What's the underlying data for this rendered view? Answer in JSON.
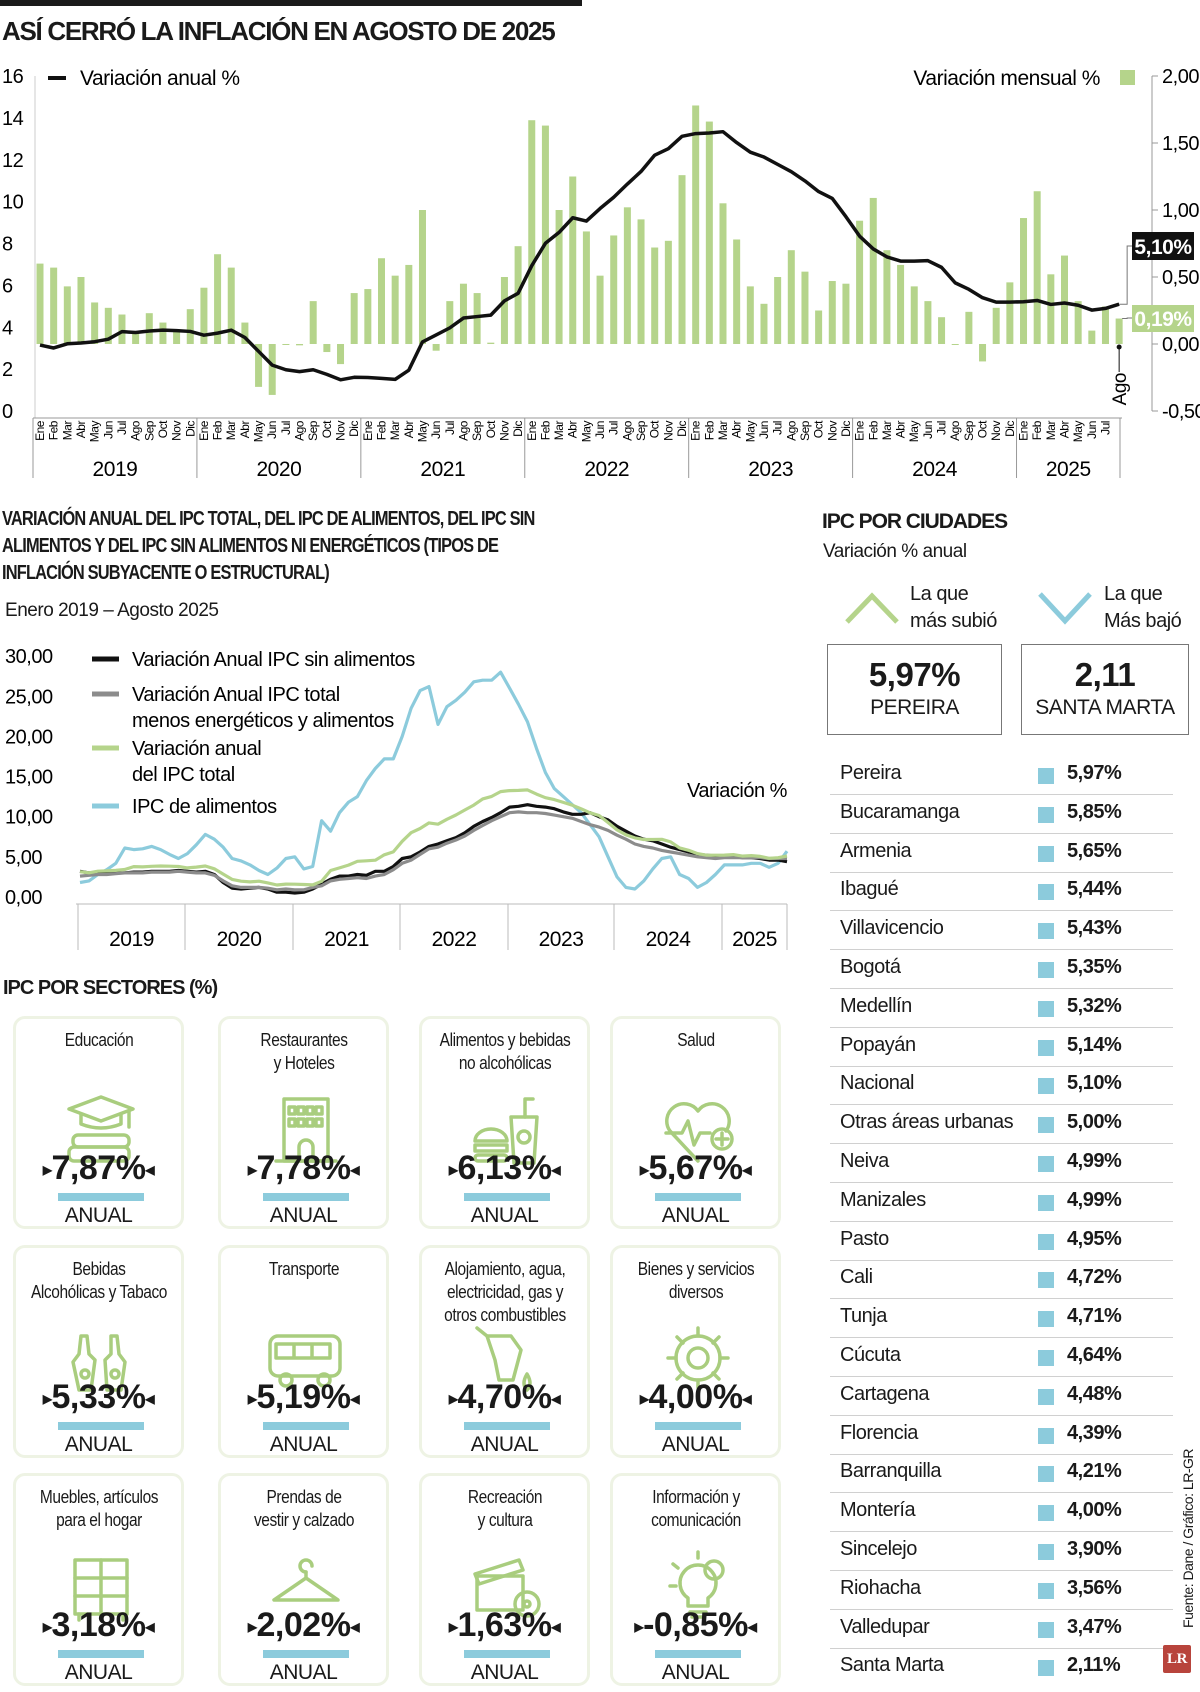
{
  "title": "ASÍ CERRÓ LA INFLACIÓN EN AGOSTO DE 2025",
  "colors": {
    "green": "#b5d48b",
    "blue": "#8ccbdc",
    "black": "#111111",
    "gray": "#8c8c8c",
    "label_black": "#111111",
    "label_green": "#b5d48b"
  },
  "chart_data": [
    {
      "type": "bar",
      "legend_line": "Variación anual %",
      "legend_bar": "Variación mensual %",
      "left_axis": {
        "range": [
          0,
          16
        ],
        "ticks": [
          "0",
          "2",
          "4",
          "6",
          "8",
          "10",
          "12",
          "14",
          "16"
        ]
      },
      "right_axis": {
        "range": [
          -0.5,
          2.0
        ],
        "ticks": [
          "-0,50",
          "0,00",
          "0,50",
          "1,00",
          "1,50",
          "2,00"
        ]
      },
      "month_labels": [
        "Ene",
        "Feb",
        "Mar",
        "Abr",
        "May",
        "Jun",
        "Jul",
        "Ago",
        "Sep",
        "Oct",
        "Nov",
        "Dic",
        "Ene",
        "Feb",
        "Mar",
        "Abr",
        "May",
        "Jun",
        "Jul",
        "Ago",
        "Sep",
        "Oct",
        "Nov",
        "Dic",
        "Ene",
        "Feb",
        "Mar",
        "Abr",
        "May",
        "Jun",
        "Jul",
        "Ago",
        "Sep",
        "Oct",
        "Nov",
        "Dic",
        "Ene",
        "Feb",
        "Mar",
        "Abr",
        "May",
        "Jun",
        "Jul",
        "Ago",
        "Sep",
        "Oct",
        "Nov",
        "Dic",
        "Ene",
        "Feb",
        "Mar",
        "Abr",
        "May",
        "Jun",
        "Jul",
        "Ago",
        "Sep",
        "Oct",
        "Nov",
        "Dic",
        "Ene",
        "Feb",
        "Mar",
        "Abr",
        "May",
        "Jun",
        "Jul",
        "Ago",
        "Sep",
        "Oct",
        "Nov",
        "Dic",
        "Ene",
        "Feb",
        "Mar",
        "Abr",
        "May",
        "Jun",
        "Jul"
      ],
      "last_month_label": "Ago",
      "years": [
        "2019",
        "2020",
        "2021",
        "2022",
        "2023",
        "2024",
        "2025"
      ],
      "series": [
        {
          "name": "Variación anual %",
          "type": "line",
          "axis": "left",
          "values": [
            3.15,
            3.01,
            3.21,
            3.25,
            3.31,
            3.43,
            3.79,
            3.75,
            3.82,
            3.86,
            3.84,
            3.8,
            3.62,
            3.72,
            3.86,
            3.51,
            2.85,
            2.19,
            1.97,
            1.88,
            1.97,
            1.75,
            1.49,
            1.61,
            1.6,
            1.56,
            1.51,
            1.95,
            3.3,
            3.63,
            3.97,
            4.44,
            4.51,
            4.58,
            5.26,
            5.62,
            6.94,
            8.01,
            8.53,
            9.23,
            9.07,
            9.67,
            10.21,
            10.84,
            11.44,
            12.22,
            12.53,
            13.12,
            13.25,
            13.28,
            13.34,
            12.82,
            12.36,
            12.13,
            11.78,
            11.43,
            10.99,
            10.48,
            10.15,
            9.28,
            8.35,
            7.74,
            7.36,
            7.16,
            7.16,
            7.18,
            6.86,
            6.12,
            5.81,
            5.41,
            5.2,
            5.2,
            5.22,
            5.28,
            5.09,
            5.16,
            5.05,
            4.82,
            4.9,
            5.1
          ]
        },
        {
          "name": "Variación mensual %",
          "type": "bar",
          "axis": "right",
          "values": [
            0.6,
            0.57,
            0.43,
            0.5,
            0.31,
            0.27,
            0.22,
            0.09,
            0.23,
            0.16,
            0.1,
            0.26,
            0.42,
            0.67,
            0.57,
            0.16,
            -0.32,
            -0.38,
            0.0,
            -0.01,
            0.32,
            -0.06,
            -0.15,
            0.38,
            0.41,
            0.64,
            0.51,
            0.59,
            1.0,
            -0.05,
            0.32,
            0.45,
            0.38,
            0.01,
            0.5,
            0.73,
            1.67,
            1.63,
            1.0,
            1.25,
            0.84,
            0.51,
            0.81,
            1.02,
            0.93,
            0.72,
            0.77,
            1.26,
            1.78,
            1.66,
            1.05,
            0.78,
            0.43,
            0.3,
            0.5,
            0.7,
            0.54,
            0.25,
            0.47,
            0.45,
            0.92,
            1.09,
            0.7,
            0.59,
            0.43,
            0.32,
            0.2,
            0.0,
            0.24,
            -0.13,
            0.27,
            0.46,
            0.94,
            1.14,
            0.52,
            0.66,
            0.32,
            0.1,
            0.28,
            0.19
          ]
        }
      ],
      "callouts": {
        "annual": "5,10%",
        "monthly": "0,19%"
      }
    },
    {
      "type": "line",
      "title": "VARIACIÓN ANUAL DEL IPC TOTAL, DEL IPC DE ALIMENTOS, DEL IPC SIN ALIMENTOS Y DEL IPC SIN ALIMENTOS NI ENERGÉTICOS (TIPOS DE INFLACIÓN SUBYACENTE O ESTRUCTURAL)",
      "subtitle": "Enero 2019 – Agosto 2025",
      "ylim": [
        0,
        30
      ],
      "y_ticks": [
        "0,00",
        "5,00",
        "10,00",
        "15,00",
        "20,00",
        "25,00",
        "30,00"
      ],
      "years": [
        "2019",
        "2020",
        "2021",
        "2022",
        "2023",
        "2024",
        "2025"
      ],
      "annotation": "Variación %",
      "last_month_label": "Ago",
      "series": [
        {
          "name": "Variación Anual IPC sin alimentos",
          "color": "#111111",
          "values": [
            3.2,
            3.0,
            3.0,
            3.0,
            3.0,
            3.0,
            3.1,
            3.1,
            3.2,
            3.2,
            3.2,
            3.3,
            3.2,
            3.1,
            3.2,
            2.8,
            1.8,
            1.1,
            1.0,
            1.1,
            1.2,
            1.0,
            0.6,
            0.6,
            0.5,
            0.6,
            1.0,
            1.6,
            2.2,
            2.6,
            2.6,
            2.8,
            2.7,
            3.2,
            3.2,
            3.8,
            4.8,
            5.0,
            5.6,
            6.3,
            6.6,
            7.0,
            7.4,
            8.0,
            8.8,
            9.4,
            9.9,
            10.5,
            11.2,
            11.3,
            11.5,
            11.3,
            11.2,
            11.0,
            10.6,
            10.3,
            10.3,
            10.5,
            10.0,
            9.6,
            8.8,
            8.2,
            7.6,
            7.2,
            7.0,
            6.6,
            6.2,
            5.9,
            5.6,
            5.3,
            5.2,
            5.1,
            5.1,
            5.0,
            4.9,
            4.9,
            4.8,
            4.6,
            4.6,
            4.4
          ]
        },
        {
          "name": "Variación Anual IPC total menos energéticos y alimentos",
          "color": "#8c8c8c",
          "values": [
            2.6,
            2.7,
            2.8,
            2.8,
            2.9,
            3.0,
            3.0,
            3.0,
            3.1,
            3.1,
            3.1,
            3.2,
            3.1,
            3.0,
            3.0,
            2.7,
            2.0,
            1.4,
            1.2,
            1.2,
            1.2,
            1.1,
            0.9,
            1.0,
            0.9,
            0.9,
            1.2,
            1.4,
            2.0,
            2.2,
            2.3,
            2.4,
            2.3,
            2.6,
            2.8,
            3.4,
            4.2,
            4.6,
            5.3,
            6.0,
            6.2,
            6.7,
            7.1,
            7.6,
            8.3,
            8.9,
            9.5,
            10.0,
            10.5,
            10.6,
            10.5,
            10.5,
            10.4,
            10.2,
            10.0,
            9.8,
            9.4,
            9.0,
            8.7,
            8.3,
            7.7,
            7.2,
            6.6,
            6.3,
            6.1,
            5.8,
            5.6,
            5.4,
            5.2,
            5.0,
            4.9,
            4.8,
            4.9,
            4.9,
            4.9,
            4.9,
            4.9,
            4.8,
            4.8,
            4.8
          ]
        },
        {
          "name": "Variación anual del IPC total",
          "color": "#b5d48b",
          "values": [
            3.15,
            3.01,
            3.21,
            3.25,
            3.31,
            3.43,
            3.79,
            3.75,
            3.82,
            3.86,
            3.84,
            3.8,
            3.62,
            3.72,
            3.86,
            3.51,
            2.85,
            2.19,
            1.97,
            1.88,
            1.97,
            1.75,
            1.49,
            1.61,
            1.6,
            1.56,
            1.51,
            1.95,
            3.3,
            3.63,
            3.97,
            4.44,
            4.51,
            4.58,
            5.26,
            5.62,
            6.94,
            8.01,
            8.53,
            9.23,
            9.07,
            9.67,
            10.21,
            10.84,
            11.44,
            12.22,
            12.53,
            13.12,
            13.25,
            13.28,
            13.34,
            12.82,
            12.36,
            12.13,
            11.78,
            11.43,
            10.99,
            10.48,
            10.15,
            9.28,
            8.35,
            7.74,
            7.36,
            7.16,
            7.16,
            7.18,
            6.86,
            6.12,
            5.81,
            5.41,
            5.2,
            5.2,
            5.22,
            5.28,
            5.09,
            5.16,
            5.05,
            4.82,
            4.9,
            5.1
          ]
        },
        {
          "name": "IPC de alimentos",
          "color": "#8ccbdc",
          "values": [
            1.8,
            2.0,
            2.8,
            3.4,
            4.2,
            6.1,
            5.9,
            6.0,
            6.3,
            5.9,
            5.3,
            4.8,
            5.4,
            6.5,
            7.8,
            7.2,
            6.2,
            4.8,
            4.5,
            4.0,
            3.3,
            2.8,
            3.6,
            4.8,
            5.0,
            3.5,
            3.8,
            9.5,
            8.2,
            10.5,
            11.8,
            12.5,
            14.5,
            16.0,
            17.2,
            17.2,
            20.0,
            23.5,
            25.7,
            26.2,
            21.5,
            23.7,
            24.5,
            25.5,
            26.8,
            27.0,
            27.0,
            28.0,
            26.0,
            24.0,
            21.8,
            18.5,
            15.5,
            13.5,
            12.5,
            11.5,
            10.5,
            9.0,
            7.5,
            5.0,
            2.5,
            1.2,
            1.0,
            2.0,
            3.5,
            4.8,
            5.0,
            2.8,
            2.3,
            1.2,
            1.8,
            2.8,
            4.0,
            4.0,
            4.0,
            4.2,
            4.2,
            3.7,
            4.2,
            5.7
          ]
        }
      ]
    }
  ],
  "cities": {
    "title": "IPC POR CIUDADES",
    "subtitle": "Variación % anual",
    "up": {
      "label": "La que\nmás subió",
      "value": "5,97%",
      "city": "PEREIRA"
    },
    "down": {
      "label": "La que\nMás bajó",
      "value": "2,11",
      "city": "SANTA MARTA"
    },
    "items": [
      {
        "name": "Pereira",
        "value": "5,97%"
      },
      {
        "name": "Bucaramanga",
        "value": "5,85%"
      },
      {
        "name": "Armenia",
        "value": "5,65%"
      },
      {
        "name": "Ibagué",
        "value": "5,44%"
      },
      {
        "name": "Villavicencio",
        "value": "5,43%"
      },
      {
        "name": "Bogotá",
        "value": "5,35%"
      },
      {
        "name": "Medellín",
        "value": "5,32%"
      },
      {
        "name": "Popayán",
        "value": "5,14%"
      },
      {
        "name": "Nacional",
        "value": "5,10%"
      },
      {
        "name": "Otras áreas urbanas",
        "value": "5,00%"
      },
      {
        "name": "Neiva",
        "value": "4,99%"
      },
      {
        "name": "Manizales",
        "value": "4,99%"
      },
      {
        "name": "Pasto",
        "value": "4,95%"
      },
      {
        "name": "Cali",
        "value": "4,72%"
      },
      {
        "name": "Tunja",
        "value": "4,71%"
      },
      {
        "name": "Cúcuta",
        "value": "4,64%"
      },
      {
        "name": "Cartagena",
        "value": "4,48%"
      },
      {
        "name": "Florencia",
        "value": "4,39%"
      },
      {
        "name": "Barranquilla",
        "value": "4,21%"
      },
      {
        "name": "Montería",
        "value": "4,00%"
      },
      {
        "name": "Sincelejo",
        "value": "3,90%"
      },
      {
        "name": "Riohacha",
        "value": "3,56%"
      },
      {
        "name": "Valledupar",
        "value": "3,47%"
      },
      {
        "name": "Santa Marta",
        "value": "2,11%"
      }
    ]
  },
  "sectors": {
    "title": "IPC POR SECTORES (%)",
    "items": [
      {
        "label": "Educación",
        "value": "7,87%",
        "period": "ANUAL",
        "icon": "graduation-cap-books"
      },
      {
        "label": "Restaurantes\ny Hoteles",
        "value": "7,78%",
        "period": "ANUAL",
        "icon": "hotel-building"
      },
      {
        "label": "Alimentos y bebidas\nno alcohólicas",
        "value": "6,13%",
        "period": "ANUAL",
        "icon": "burger-drink"
      },
      {
        "label": "Salud",
        "value": "5,67%",
        "period": "ANUAL",
        "icon": "heart-pulse-plus"
      },
      {
        "label": "Bebidas\nAlcohólicas y Tabaco",
        "value": "5,33%",
        "period": "ANUAL",
        "icon": "bottles"
      },
      {
        "label": "Transporte",
        "value": "5,19%",
        "period": "ANUAL",
        "icon": "bus"
      },
      {
        "label": "Alojamiento, agua,\nelectricidad, gas y\notros combustibles",
        "value": "4,70%",
        "period": "ANUAL",
        "icon": "fuel-nozzle"
      },
      {
        "label": "Bienes y servicios\ndiversos",
        "value": "4,00%",
        "period": "ANUAL",
        "icon": "gear-wrench"
      },
      {
        "label": "Muebles, artículos\npara el hogar",
        "value": "3,18%",
        "period": "ANUAL",
        "icon": "furniture-shelf"
      },
      {
        "label": "Prendas de\nvestir y calzado",
        "value": "2,02%",
        "period": "ANUAL",
        "icon": "hanger"
      },
      {
        "label": "Recreación\ny cultura",
        "value": "1,63%",
        "period": "ANUAL",
        "icon": "film-clapper"
      },
      {
        "label": "Información y\ncomunicación",
        "value": "-0,85%",
        "period": "ANUAL",
        "icon": "lightbulb-gear"
      }
    ]
  },
  "source": "Fuente: Dane / Gráfico: LR-GR",
  "logo": "LR"
}
